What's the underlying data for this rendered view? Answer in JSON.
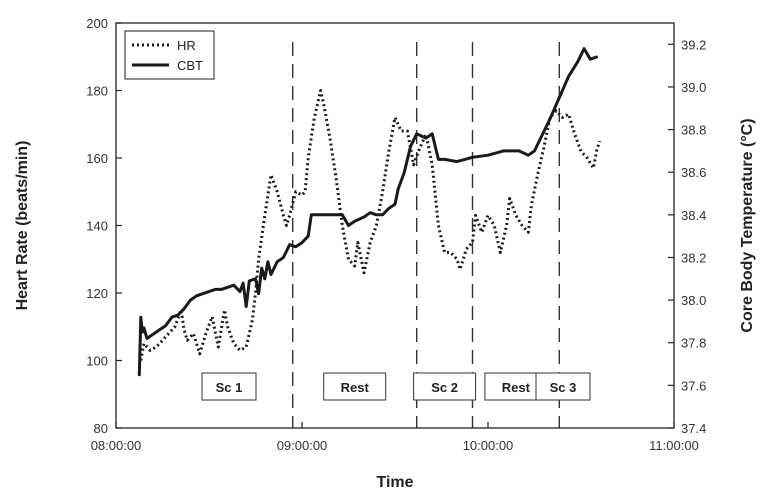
{
  "chart_data": {
    "type": "line",
    "xlabel": "Time",
    "ylabel": "Heart Rate (beats/min)",
    "y2label": "Core Body Temperature (°C)",
    "x_ticks": [
      "08:00:00",
      "09:00:00",
      "10:00:00",
      "11:00:00"
    ],
    "xlim": [
      "08:00:00",
      "11:00:00"
    ],
    "ylim": [
      80,
      200
    ],
    "y_ticks": [
      80,
      100,
      120,
      140,
      160,
      180,
      200
    ],
    "y2lim": [
      37.4,
      39.3
    ],
    "y2_ticks": [
      "37.4",
      "37.6",
      "37.8",
      "38.0",
      "38.2",
      "38.4",
      "38.6",
      "38.8",
      "39.0",
      "39.2"
    ],
    "grid": false,
    "legend_position": "top-left",
    "series": [
      {
        "name": "HR",
        "axis": "left",
        "style": "dotted",
        "color": "#1a1a1a",
        "points": [
          [
            "08:08:00",
            100
          ],
          [
            "08:09:00",
            105
          ],
          [
            "08:11:00",
            103
          ],
          [
            "08:13:00",
            104
          ],
          [
            "08:15:00",
            106
          ],
          [
            "08:17:00",
            108
          ],
          [
            "08:19:00",
            110
          ],
          [
            "08:21:00",
            115
          ],
          [
            "08:22:00",
            109
          ],
          [
            "08:23:00",
            106
          ],
          [
            "08:25:00",
            108
          ],
          [
            "08:27:00",
            102
          ],
          [
            "08:29:00",
            108
          ],
          [
            "08:31:00",
            113
          ],
          [
            "08:33:00",
            104
          ],
          [
            "08:35:00",
            115
          ],
          [
            "08:36:00",
            110
          ],
          [
            "08:38:00",
            105
          ],
          [
            "08:40:00",
            103
          ],
          [
            "08:42:00",
            104
          ],
          [
            "08:44:00",
            112
          ],
          [
            "08:45:00",
            120
          ],
          [
            "08:46:00",
            130
          ],
          [
            "08:48:00",
            143
          ],
          [
            "08:50:00",
            155
          ],
          [
            "08:52:00",
            150
          ],
          [
            "08:54:00",
            143
          ],
          [
            "08:55:00",
            140
          ],
          [
            "08:56:00",
            143
          ],
          [
            "08:58:00",
            150
          ],
          [
            "09:00:00",
            149
          ],
          [
            "09:01:00",
            150
          ],
          [
            "09:02:00",
            160
          ],
          [
            "09:04:00",
            172
          ],
          [
            "09:06:00",
            180
          ],
          [
            "09:07:00",
            176
          ],
          [
            "09:09:00",
            166
          ],
          [
            "09:11:00",
            154
          ],
          [
            "09:13:00",
            140
          ],
          [
            "09:15:00",
            130
          ],
          [
            "09:17:00",
            128
          ],
          [
            "09:18:00",
            135
          ],
          [
            "09:20:00",
            126
          ],
          [
            "09:22:00",
            135
          ],
          [
            "09:24:00",
            140
          ],
          [
            "09:26:00",
            150
          ],
          [
            "09:28:00",
            162
          ],
          [
            "09:30:00",
            172
          ],
          [
            "09:32:00",
            168
          ],
          [
            "09:34:00",
            168
          ],
          [
            "09:36:00",
            158
          ],
          [
            "09:38:00",
            163
          ],
          [
            "09:40:00",
            167
          ],
          [
            "09:42:00",
            158
          ],
          [
            "09:44:00",
            140
          ],
          [
            "09:46:00",
            132
          ],
          [
            "09:48:00",
            132
          ],
          [
            "09:50:00",
            130
          ],
          [
            "09:51:00",
            127
          ],
          [
            "09:53:00",
            133
          ],
          [
            "09:55:00",
            135
          ],
          [
            "09:56:00",
            143
          ],
          [
            "09:58:00",
            138
          ],
          [
            "10:00:00",
            143
          ],
          [
            "10:02:00",
            140
          ],
          [
            "10:04:00",
            132
          ],
          [
            "10:06:00",
            140
          ],
          [
            "10:07:00",
            148
          ],
          [
            "10:09:00",
            143
          ],
          [
            "10:11:00",
            140
          ],
          [
            "10:13:00",
            138
          ],
          [
            "10:14:00",
            146
          ],
          [
            "10:16:00",
            155
          ],
          [
            "10:18:00",
            163
          ],
          [
            "10:20:00",
            172
          ],
          [
            "10:22:00",
            174
          ],
          [
            "10:24:00",
            172
          ],
          [
            "10:26:00",
            173
          ],
          [
            "10:28:00",
            167
          ],
          [
            "10:30:00",
            162
          ],
          [
            "10:32:00",
            160
          ],
          [
            "10:34:00",
            157
          ],
          [
            "10:35:00",
            162
          ],
          [
            "10:36:00",
            165
          ]
        ]
      },
      {
        "name": "CBT",
        "axis": "right",
        "style": "solid",
        "color": "#1a1a1a",
        "points": [
          [
            "08:07:30",
            37.65
          ],
          [
            "08:08:00",
            37.92
          ],
          [
            "08:08:30",
            37.85
          ],
          [
            "08:09:00",
            37.87
          ],
          [
            "08:10:00",
            37.82
          ],
          [
            "08:12:00",
            37.84
          ],
          [
            "08:14:00",
            37.86
          ],
          [
            "08:16:00",
            37.88
          ],
          [
            "08:18:00",
            37.92
          ],
          [
            "08:20:00",
            37.93
          ],
          [
            "08:22:00",
            37.96
          ],
          [
            "08:24:00",
            38.0
          ],
          [
            "08:26:00",
            38.02
          ],
          [
            "08:28:00",
            38.03
          ],
          [
            "08:30:00",
            38.04
          ],
          [
            "08:32:00",
            38.05
          ],
          [
            "08:34:00",
            38.05
          ],
          [
            "08:36:00",
            38.06
          ],
          [
            "08:38:00",
            38.07
          ],
          [
            "08:40:00",
            38.04
          ],
          [
            "08:41:00",
            38.08
          ],
          [
            "08:42:00",
            37.97
          ],
          [
            "08:43:00",
            38.09
          ],
          [
            "08:45:00",
            38.1
          ],
          [
            "08:46:00",
            38.03
          ],
          [
            "08:47:00",
            38.15
          ],
          [
            "08:48:00",
            38.1
          ],
          [
            "08:49:00",
            38.18
          ],
          [
            "08:50:00",
            38.12
          ],
          [
            "08:52:00",
            38.18
          ],
          [
            "08:54:00",
            38.2
          ],
          [
            "08:56:00",
            38.26
          ],
          [
            "08:58:00",
            38.25
          ],
          [
            "09:00:00",
            38.27
          ],
          [
            "09:02:00",
            38.3
          ],
          [
            "09:03:00",
            38.4
          ],
          [
            "09:05:00",
            38.4
          ],
          [
            "09:10:00",
            38.4
          ],
          [
            "09:13:00",
            38.4
          ],
          [
            "09:15:00",
            38.35
          ],
          [
            "09:17:00",
            38.37
          ],
          [
            "09:20:00",
            38.39
          ],
          [
            "09:22:00",
            38.41
          ],
          [
            "09:24:00",
            38.4
          ],
          [
            "09:26:00",
            38.4
          ],
          [
            "09:28:00",
            38.43
          ],
          [
            "09:30:00",
            38.45
          ],
          [
            "09:31:00",
            38.52
          ],
          [
            "09:33:00",
            38.6
          ],
          [
            "09:35:00",
            38.72
          ],
          [
            "09:37:00",
            38.78
          ],
          [
            "09:40:00",
            38.76
          ],
          [
            "09:42:00",
            38.78
          ],
          [
            "09:44:00",
            38.66
          ],
          [
            "09:46:00",
            38.66
          ],
          [
            "09:50:00",
            38.65
          ],
          [
            "09:55:00",
            38.67
          ],
          [
            "10:00:00",
            38.68
          ],
          [
            "10:05:00",
            38.7
          ],
          [
            "10:10:00",
            38.7
          ],
          [
            "10:13:00",
            38.68
          ],
          [
            "10:15:00",
            38.7
          ],
          [
            "10:17:00",
            38.76
          ],
          [
            "10:20:00",
            38.85
          ],
          [
            "10:23:00",
            38.95
          ],
          [
            "10:26:00",
            39.05
          ],
          [
            "10:29:00",
            39.12
          ],
          [
            "10:31:00",
            39.18
          ],
          [
            "10:33:00",
            39.13
          ],
          [
            "10:35:00",
            39.14
          ]
        ]
      }
    ],
    "phases": [
      {
        "label": "Sc 1",
        "start": "08:00:00",
        "end": "08:57:00"
      },
      {
        "label": "Rest",
        "start": "08:57:00",
        "end": "09:37:00"
      },
      {
        "label": "Sc 2",
        "start": "09:37:00",
        "end": "09:55:00"
      },
      {
        "label": "Rest",
        "start": "09:55:00",
        "end": "10:23:00"
      },
      {
        "label": "Sc 3",
        "start": "10:23:00",
        "end": "11:00:00"
      }
    ],
    "phase_boundaries": [
      "08:57:00",
      "09:37:00",
      "09:55:00",
      "10:23:00"
    ]
  }
}
